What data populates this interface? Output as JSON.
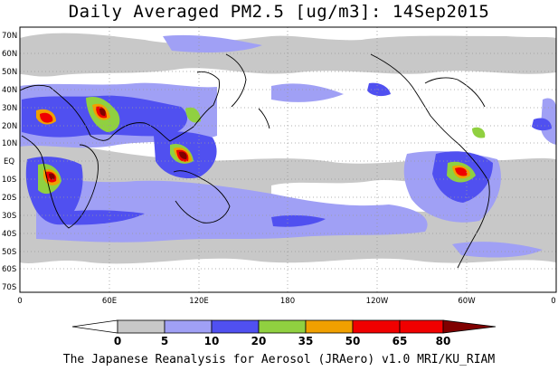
{
  "title": "Daily Averaged PM2.5 [ug/m3]: 14Sep2015",
  "footer": "The Japanese Reanalysis for Aerosol (JRAero) v1.0 MRI/KU_RIAM",
  "lat_labels": [
    "70N",
    "60N",
    "50N",
    "40N",
    "30N",
    "20N",
    "10N",
    "EQ",
    "10S",
    "20S",
    "30S",
    "40S",
    "50S",
    "60S",
    "70S"
  ],
  "lon_labels": [
    "0",
    "60E",
    "120E",
    "180",
    "120W",
    "60W",
    "0"
  ],
  "colorbar": {
    "ticks": [
      "0",
      "5",
      "10",
      "20",
      "35",
      "50",
      "65",
      "80"
    ],
    "colors": [
      "#ffffff",
      "#c8c8c8",
      "#a0a0f5",
      "#5050f0",
      "#90d040",
      "#f0a000",
      "#f00000",
      "#800000"
    ]
  }
}
